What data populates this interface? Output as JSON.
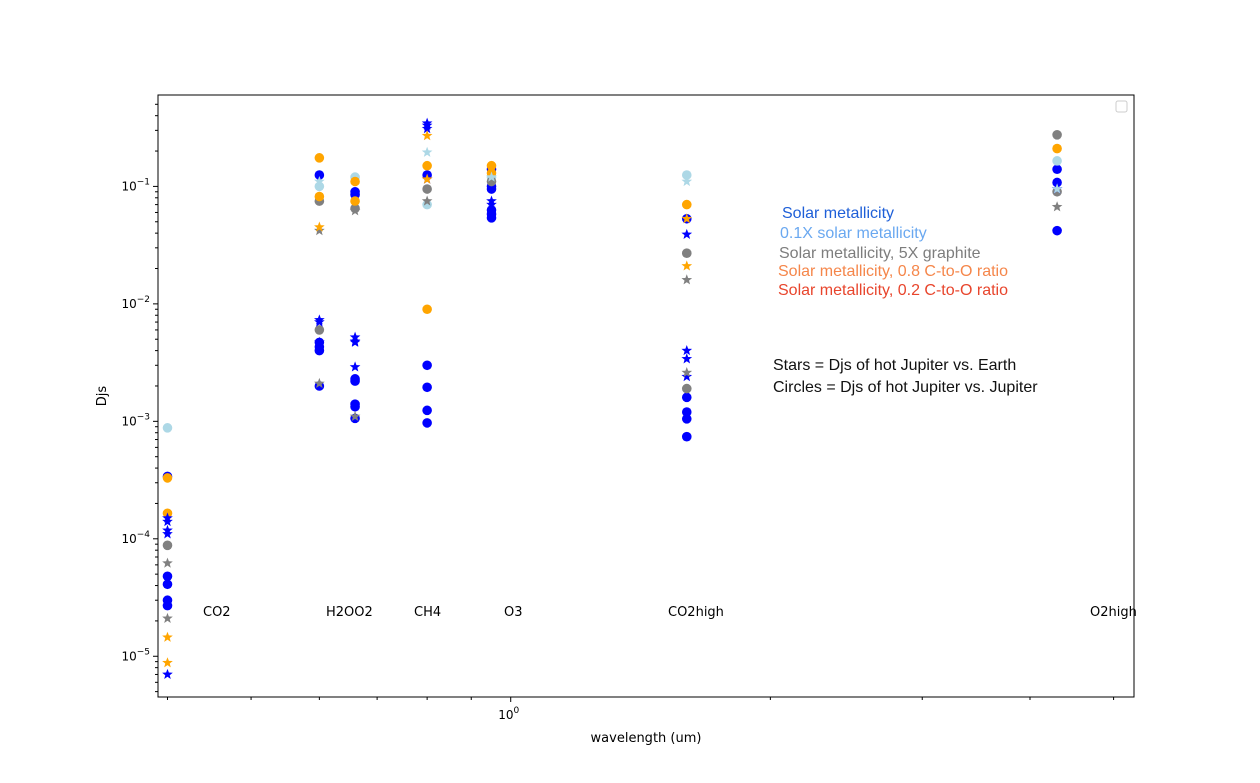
{
  "chart_data": {
    "type": "scatter",
    "xlabel": "wavelength (um)",
    "ylabel": "Djs",
    "xscale": "log",
    "yscale": "log",
    "xlim": [
      0.39,
      5.28
    ],
    "ylim": [
      4.5e-06,
      0.6
    ],
    "x_tick_labels": [
      "10^0"
    ],
    "y_tick_labels": [
      "10^-5",
      "10^-4",
      "10^-3",
      "10^-2",
      "10^-1"
    ],
    "empty_legend_box": "top-right",
    "band_labels": [
      {
        "text": "CO2",
        "x": 0.4
      },
      {
        "text": "H2OO2",
        "x": 0.7
      },
      {
        "text": "CH4",
        "x": 0.72
      },
      {
        "text": "O3",
        "x": 0.95
      },
      {
        "text": "CO2high",
        "x": 1.6
      },
      {
        "text": "O2high",
        "x": 4.3
      }
    ],
    "legend_text": [
      {
        "text": "Solar metallicity",
        "color": "#1e5fd8"
      },
      {
        "text": "0.1X solar metallicity",
        "color": "#6aa8f0"
      },
      {
        "text": "Solar metallicity, 5X graphite",
        "color": "#7d7d7d"
      },
      {
        "text": "Solar metallicity, 0.8 C-to-O ratio",
        "color": "#f5864a"
      },
      {
        "text": "Solar metallicity, 0.2 C-to-O ratio",
        "color": "#e8452c"
      }
    ],
    "notes": [
      "Stars = Djs of hot Jupiter vs. Earth",
      "Circles = Djs of hot Jupiter vs. Jupiter"
    ],
    "marker_colors": {
      "blue": "#0000ff",
      "lightblue": "#add8e6",
      "gray": "#808080",
      "orange": "#ffa500"
    },
    "series": [
      {
        "marker": "circle",
        "color": "blue",
        "points": [
          [
            0.4,
            0.00034
          ],
          [
            0.4,
            4.8e-05
          ],
          [
            0.4,
            4.1e-05
          ],
          [
            0.4,
            3e-05
          ],
          [
            0.4,
            2.7e-05
          ],
          [
            0.6,
            0.125
          ],
          [
            0.6,
            0.0047
          ],
          [
            0.6,
            0.0043
          ],
          [
            0.6,
            0.004
          ],
          [
            0.6,
            0.002
          ],
          [
            0.66,
            0.09
          ],
          [
            0.66,
            0.085
          ],
          [
            0.66,
            0.0023
          ],
          [
            0.66,
            0.0022
          ],
          [
            0.66,
            0.0014
          ],
          [
            0.66,
            0.00133
          ],
          [
            0.66,
            0.00106
          ],
          [
            0.8,
            0.125
          ],
          [
            0.8,
            0.003
          ],
          [
            0.8,
            0.00195
          ],
          [
            0.8,
            0.00124
          ],
          [
            0.8,
            0.00097
          ],
          [
            0.95,
            0.14
          ],
          [
            0.95,
            0.1
          ],
          [
            0.95,
            0.095
          ],
          [
            0.95,
            0.063
          ],
          [
            0.95,
            0.058
          ],
          [
            0.95,
            0.054
          ],
          [
            1.6,
            0.053
          ],
          [
            1.6,
            0.0016
          ],
          [
            1.6,
            0.0012
          ],
          [
            1.6,
            0.00105
          ],
          [
            1.6,
            0.00074
          ],
          [
            4.3,
            0.14
          ],
          [
            4.3,
            0.108
          ],
          [
            4.3,
            0.042
          ]
        ]
      },
      {
        "marker": "circle",
        "color": "lightblue",
        "points": [
          [
            0.4,
            0.00088
          ],
          [
            0.6,
            0.1
          ],
          [
            0.66,
            0.12
          ],
          [
            0.8,
            0.07
          ],
          [
            0.95,
            0.12
          ],
          [
            1.6,
            0.125
          ],
          [
            4.3,
            0.165
          ]
        ]
      },
      {
        "marker": "circle",
        "color": "gray",
        "points": [
          [
            0.4,
            8.8e-05
          ],
          [
            0.6,
            0.075
          ],
          [
            0.6,
            0.006
          ],
          [
            0.66,
            0.065
          ],
          [
            0.8,
            0.095
          ],
          [
            0.95,
            0.11
          ],
          [
            1.6,
            0.027
          ],
          [
            1.6,
            0.0019
          ],
          [
            4.3,
            0.275
          ],
          [
            4.3,
            0.09
          ]
        ]
      },
      {
        "marker": "circle",
        "color": "orange",
        "points": [
          [
            0.4,
            0.00033
          ],
          [
            0.4,
            0.000165
          ],
          [
            0.6,
            0.175
          ],
          [
            0.6,
            0.082
          ],
          [
            0.66,
            0.11
          ],
          [
            0.66,
            0.075
          ],
          [
            0.8,
            0.15
          ],
          [
            0.8,
            0.009
          ],
          [
            0.95,
            0.15
          ],
          [
            0.95,
            0.13
          ],
          [
            1.6,
            0.07
          ],
          [
            4.3,
            0.21
          ]
        ]
      },
      {
        "marker": "star",
        "color": "blue",
        "points": [
          [
            0.4,
            0.00015
          ],
          [
            0.4,
            0.00014
          ],
          [
            0.4,
            0.000118
          ],
          [
            0.4,
            0.00011
          ],
          [
            0.4,
            7e-06
          ],
          [
            0.6,
            0.0073
          ],
          [
            0.6,
            0.007
          ],
          [
            0.6,
            0.0047
          ],
          [
            0.66,
            0.0052
          ],
          [
            0.66,
            0.0048
          ],
          [
            0.66,
            0.0047
          ],
          [
            0.66,
            0.0029
          ],
          [
            0.8,
            0.345
          ],
          [
            0.8,
            0.33
          ],
          [
            0.8,
            0.31
          ],
          [
            0.8,
            0.115
          ],
          [
            0.95,
            0.075
          ],
          [
            0.95,
            0.07
          ],
          [
            1.6,
            0.039
          ],
          [
            1.6,
            0.004
          ],
          [
            1.6,
            0.0034
          ],
          [
            1.6,
            0.0024
          ],
          [
            4.3,
            0.095
          ]
        ]
      },
      {
        "marker": "star",
        "color": "lightblue",
        "points": [
          [
            0.6,
            0.11
          ],
          [
            0.8,
            0.195
          ],
          [
            0.95,
            0.12
          ],
          [
            1.6,
            0.11
          ],
          [
            4.3,
            0.095
          ]
        ]
      },
      {
        "marker": "star",
        "color": "gray",
        "points": [
          [
            0.4,
            6.2e-05
          ],
          [
            0.4,
            2.1e-05
          ],
          [
            0.6,
            0.042
          ],
          [
            0.6,
            0.0021
          ],
          [
            0.66,
            0.062
          ],
          [
            0.66,
            0.0011
          ],
          [
            0.8,
            0.075
          ],
          [
            1.6,
            0.016
          ],
          [
            1.6,
            0.0026
          ],
          [
            4.3,
            0.067
          ]
        ]
      },
      {
        "marker": "star",
        "color": "orange",
        "points": [
          [
            0.4,
            1.45e-05
          ],
          [
            0.4,
            8.8e-06
          ],
          [
            0.6,
            0.045
          ],
          [
            0.8,
            0.27
          ],
          [
            0.8,
            0.115
          ],
          [
            1.6,
            0.021
          ],
          [
            1.6,
            0.053
          ]
        ]
      }
    ]
  }
}
